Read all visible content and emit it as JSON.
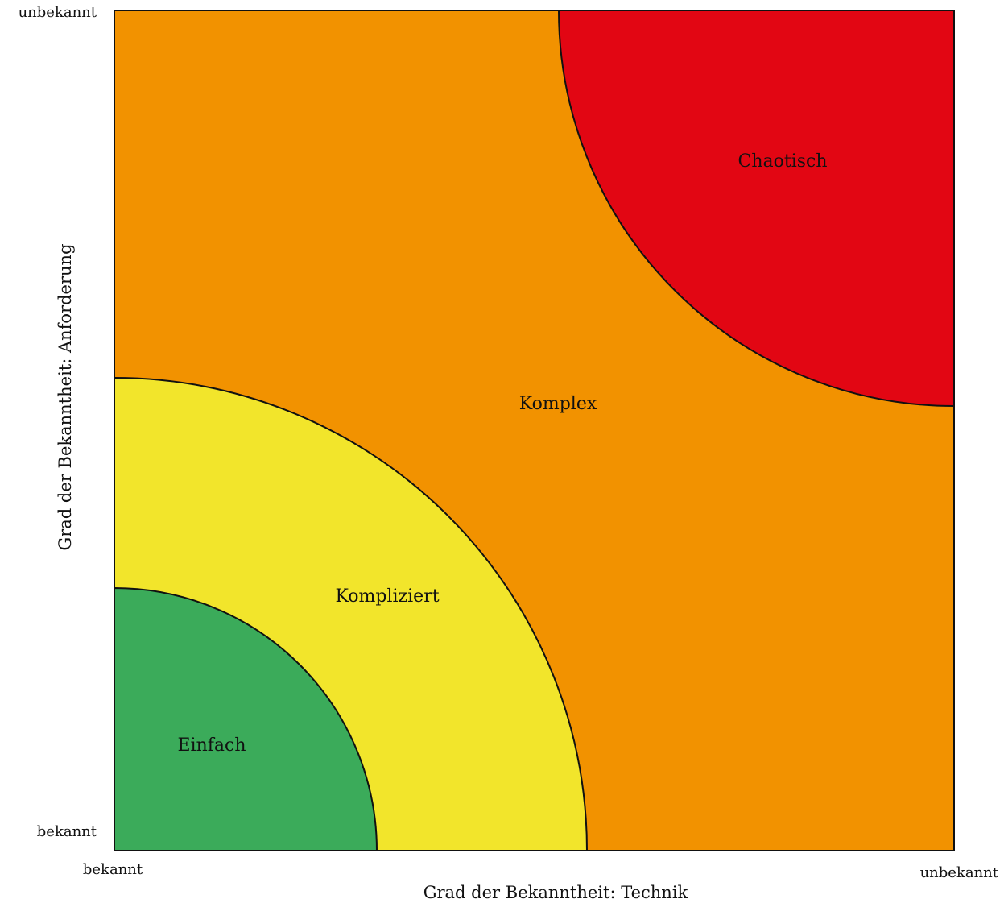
{
  "axes": {
    "y_title": "Grad der Bekanntheit: Anforderung",
    "x_title": "Grad der Bekanntheit: Technik",
    "y_top": "unbekannt",
    "y_bottom": "bekannt",
    "x_left": "bekannt",
    "x_right": "unbekannt"
  },
  "regions": {
    "einfach": {
      "label": "Einfach",
      "color": "#3bab5a"
    },
    "kompliziert": {
      "label": "Kompliziert",
      "color": "#f2e52b"
    },
    "komplex": {
      "label": "Komplex",
      "color": "#f29200"
    },
    "chaotisch": {
      "label": "Chaotisch",
      "color": "#e20613"
    }
  }
}
